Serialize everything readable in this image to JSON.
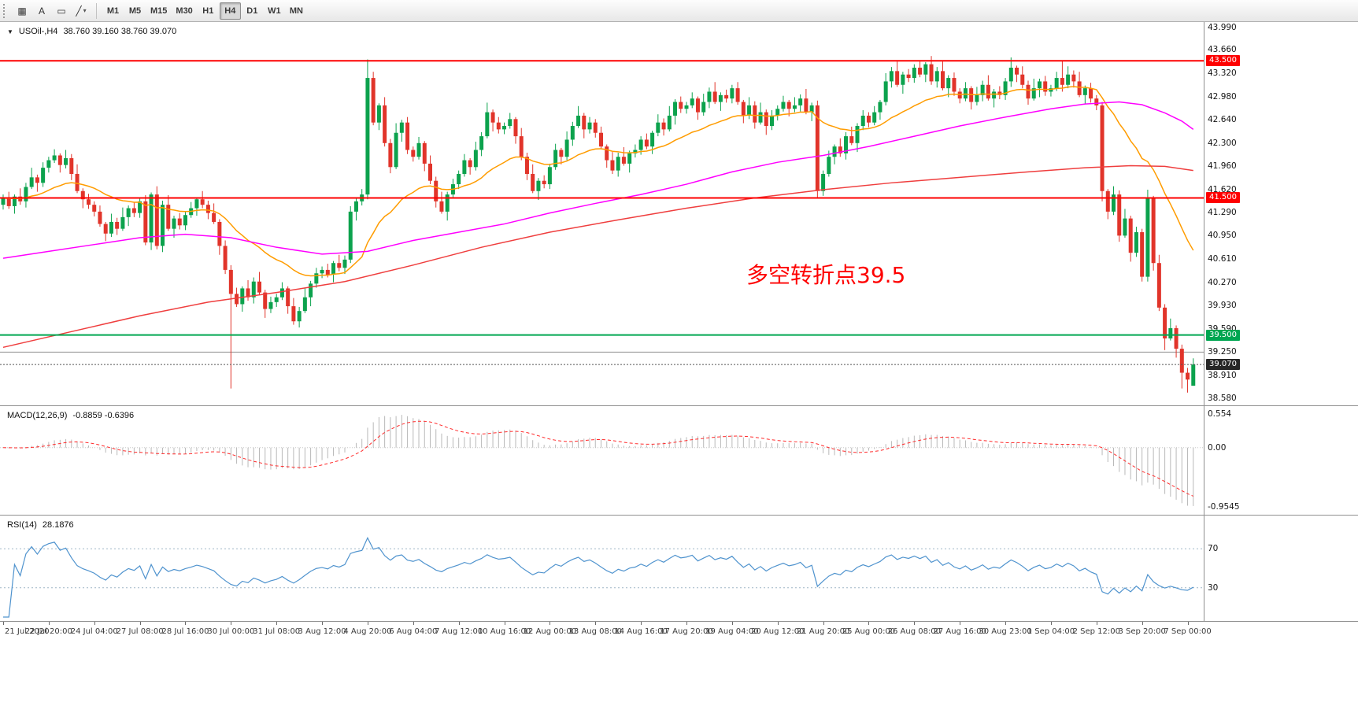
{
  "toolbar": {
    "tools": [
      {
        "name": "chart-grid",
        "glyph": "▦"
      },
      {
        "name": "text-tool",
        "glyph": "A"
      },
      {
        "name": "text-label-tool",
        "glyph": "▭"
      },
      {
        "name": "shapes-line-tool",
        "glyph": "╱",
        "caret": "▾"
      }
    ],
    "timeframes": [
      "M1",
      "M5",
      "M15",
      "M30",
      "H1",
      "H4",
      "D1",
      "W1",
      "MN"
    ],
    "active_timeframe": "H4"
  },
  "price_panel": {
    "symbol_marker": "▼",
    "symbol_label": "USOil-,H4",
    "ohlc_label": "38.760 39.160 38.760 39.070",
    "annotation": "多空转折点39.5",
    "annotation_color": "#fe0000",
    "axis_labels": [
      "43.990",
      "43.660",
      "43.320",
      "42.980",
      "42.640",
      "42.300",
      "41.960",
      "41.620",
      "41.290",
      "40.950",
      "40.610",
      "40.270",
      "39.930",
      "39.590",
      "39.250",
      "38.910",
      "38.580"
    ],
    "tags": [
      {
        "text": "43.500",
        "color": "#fe0000"
      },
      {
        "text": "41.500",
        "color": "#fe0000"
      },
      {
        "text": "39.500",
        "color": "#00a651"
      },
      {
        "text": "39.070",
        "color": "#262626"
      }
    ]
  },
  "macd_panel": {
    "label": "MACD(12,26,9)",
    "values": "-0.8859 -0.6396",
    "axis_labels": [
      "0.554",
      "0.00",
      "-0.9545"
    ]
  },
  "rsi_panel": {
    "label": "RSI(14)",
    "value": "28.1876",
    "axis_labels": [
      "70",
      "30"
    ]
  },
  "time_axis": [
    "21 Jul 2020",
    "22 Jul 20:00",
    "24 Jul 04:00",
    "27 Jul 08:00",
    "28 Jul 16:00",
    "30 Jul 00:00",
    "31 Jul 08:00",
    "3 Aug 12:00",
    "4 Aug 20:00",
    "6 Aug 04:00",
    "7 Aug 12:00",
    "10 Aug 16:00",
    "12 Aug 00:00",
    "13 Aug 08:00",
    "14 Aug 16:00",
    "17 Aug 20:00",
    "19 Aug 04:00",
    "20 Aug 12:00",
    "21 Aug 20:00",
    "25 Aug 00:00",
    "26 Aug 08:00",
    "27 Aug 16:00",
    "30 Aug 23:00",
    "1 Sep 04:00",
    "2 Sep 12:00",
    "3 Sep 20:00",
    "7 Sep 00:00"
  ],
  "chart_data": {
    "type": "candlestick",
    "symbol": "USOil",
    "timeframe": "H4",
    "last_bar": {
      "open": 38.76,
      "high": 39.16,
      "low": 38.76,
      "close": 39.07
    },
    "price_range": [
      38.52,
      44.02
    ],
    "colors": {
      "up": "#0ca24d",
      "down": "#e1342a"
    },
    "first_open": 41.4,
    "closes": [
      41.5,
      41.38,
      41.52,
      41.45,
      41.66,
      41.8,
      41.72,
      41.94,
      42.05,
      42.12,
      41.98,
      42.08,
      41.85,
      41.6,
      41.48,
      41.4,
      41.3,
      41.12,
      40.98,
      41.15,
      41.05,
      41.22,
      41.35,
      41.28,
      41.45,
      40.85,
      41.55,
      40.8,
      41.4,
      41.05,
      41.2,
      41.1,
      41.25,
      41.35,
      41.48,
      41.4,
      41.28,
      41.15,
      40.8,
      40.45,
      40.1,
      39.95,
      40.18,
      40.05,
      40.28,
      40.12,
      39.88,
      39.98,
      40.05,
      40.18,
      39.92,
      39.7,
      39.85,
      40.05,
      40.25,
      40.4,
      40.45,
      40.38,
      40.55,
      40.48,
      40.6,
      41.3,
      41.45,
      41.55,
      43.25,
      42.6,
      42.85,
      42.3,
      41.95,
      42.45,
      42.6,
      42.2,
      42.1,
      42.3,
      42.0,
      41.75,
      41.45,
      41.3,
      41.55,
      41.7,
      41.85,
      42.05,
      41.95,
      42.2,
      42.4,
      42.75,
      42.6,
      42.5,
      42.55,
      42.65,
      42.4,
      42.1,
      41.85,
      41.6,
      41.75,
      41.7,
      41.95,
      42.2,
      42.1,
      42.35,
      42.55,
      42.7,
      42.5,
      42.6,
      42.45,
      42.25,
      42.05,
      41.9,
      42.1,
      42.0,
      42.15,
      42.2,
      42.35,
      42.25,
      42.45,
      42.6,
      42.5,
      42.7,
      42.9,
      42.8,
      42.85,
      42.95,
      42.75,
      42.9,
      43.05,
      42.9,
      43.0,
      42.95,
      43.1,
      42.9,
      42.7,
      42.85,
      42.6,
      42.75,
      42.55,
      42.7,
      42.8,
      42.9,
      42.8,
      42.85,
      42.95,
      42.75,
      42.85,
      41.6,
      41.85,
      42.1,
      42.25,
      42.15,
      42.4,
      42.3,
      42.55,
      42.7,
      42.6,
      42.75,
      42.9,
      43.2,
      43.35,
      43.15,
      43.3,
      43.25,
      43.4,
      43.3,
      43.45,
      43.2,
      43.35,
      43.1,
      43.25,
      43.05,
      42.95,
      43.1,
      42.9,
      43.0,
      43.15,
      42.95,
      43.05,
      43.0,
      43.2,
      43.4,
      43.3,
      43.15,
      42.95,
      43.1,
      43.2,
      43.05,
      43.1,
      43.25,
      43.15,
      43.3,
      43.2,
      43.0,
      43.1,
      42.95,
      42.85,
      41.6,
      41.3,
      41.55,
      40.95,
      41.2,
      40.7,
      41.0,
      40.35,
      41.5,
      40.55,
      39.9,
      39.45,
      39.6,
      39.3,
      38.95,
      38.85,
      39.07
    ],
    "wick_high_pattern": [
      0.05,
      0.09,
      0.03,
      0.12,
      0.06,
      0.14,
      0.04,
      0.08
    ],
    "wick_low_pattern": [
      0.07,
      0.04,
      0.11,
      0.05,
      0.09,
      0.03,
      0.13,
      0.06
    ],
    "overrides": {
      "40": [
        40.45,
        40.52,
        38.72,
        40.1
      ],
      "61": [
        40.6,
        41.38,
        40.55,
        41.3
      ],
      "64": [
        41.55,
        43.52,
        41.48,
        43.25
      ],
      "143": [
        42.85,
        42.92,
        41.5,
        41.6
      ],
      "177": [
        43.2,
        43.55,
        43.12,
        43.4
      ],
      "186": [
        43.25,
        43.5,
        43.05,
        43.15
      ],
      "193": [
        42.85,
        42.9,
        41.45,
        41.6
      ],
      "201": [
        40.35,
        41.62,
        40.28,
        41.5
      ],
      "204": [
        39.9,
        39.95,
        39.28,
        39.45
      ],
      "207": [
        39.3,
        39.36,
        38.72,
        38.95
      ],
      "208": [
        38.95,
        39.02,
        38.66,
        38.85
      ],
      "209": [
        38.76,
        39.16,
        38.76,
        39.07
      ]
    },
    "levels": [
      {
        "price": 43.5,
        "color": "#fe0000",
        "width": 2
      },
      {
        "price": 41.5,
        "color": "#fe0000",
        "width": 2
      },
      {
        "price": 39.5,
        "color": "#00a651",
        "width": 2
      },
      {
        "price": 39.25,
        "color": "#8f8f8f",
        "width": 1
      }
    ],
    "current_price": 39.07,
    "ma_lines": [
      {
        "name": "ma-orange",
        "type": "ema",
        "period": 24,
        "color": "#ff9c00"
      },
      {
        "name": "ma-magenta",
        "type": "points",
        "color": "#ff00ff",
        "points": [
          [
            0,
            40.62
          ],
          [
            8,
            40.72
          ],
          [
            16,
            40.82
          ],
          [
            24,
            40.92
          ],
          [
            32,
            40.97
          ],
          [
            40,
            40.92
          ],
          [
            48,
            40.78
          ],
          [
            56,
            40.68
          ],
          [
            64,
            40.72
          ],
          [
            72,
            40.88
          ],
          [
            80,
            41.0
          ],
          [
            88,
            41.12
          ],
          [
            96,
            41.28
          ],
          [
            104,
            41.42
          ],
          [
            112,
            41.55
          ],
          [
            120,
            41.7
          ],
          [
            128,
            41.88
          ],
          [
            136,
            42.02
          ],
          [
            144,
            42.12
          ],
          [
            152,
            42.25
          ],
          [
            160,
            42.4
          ],
          [
            168,
            42.55
          ],
          [
            176,
            42.68
          ],
          [
            184,
            42.8
          ],
          [
            190,
            42.87
          ],
          [
            196,
            42.9
          ],
          [
            200,
            42.86
          ],
          [
            204,
            42.74
          ],
          [
            207,
            42.62
          ],
          [
            209,
            42.5
          ]
        ]
      },
      {
        "name": "ma-red",
        "type": "points",
        "color": "#ef3e3e",
        "points": [
          [
            0,
            39.32
          ],
          [
            12,
            39.55
          ],
          [
            24,
            39.78
          ],
          [
            36,
            39.98
          ],
          [
            48,
            40.12
          ],
          [
            60,
            40.28
          ],
          [
            72,
            40.52
          ],
          [
            84,
            40.78
          ],
          [
            96,
            41.0
          ],
          [
            108,
            41.18
          ],
          [
            120,
            41.35
          ],
          [
            132,
            41.5
          ],
          [
            144,
            41.62
          ],
          [
            156,
            41.72
          ],
          [
            168,
            41.8
          ],
          [
            180,
            41.88
          ],
          [
            190,
            41.94
          ],
          [
            198,
            41.97
          ],
          [
            204,
            41.96
          ],
          [
            209,
            41.9
          ]
        ]
      }
    ],
    "macd": {
      "fast": 12,
      "slow": 26,
      "signal": 9,
      "hist_color": "#b9b9b9",
      "signal_color": "#ff2a2a"
    },
    "rsi": {
      "period": 14,
      "color": "#4f93ce",
      "levels": [
        70,
        30
      ],
      "level_color": "#9fb6c6",
      "range": [
        0,
        100
      ]
    }
  }
}
